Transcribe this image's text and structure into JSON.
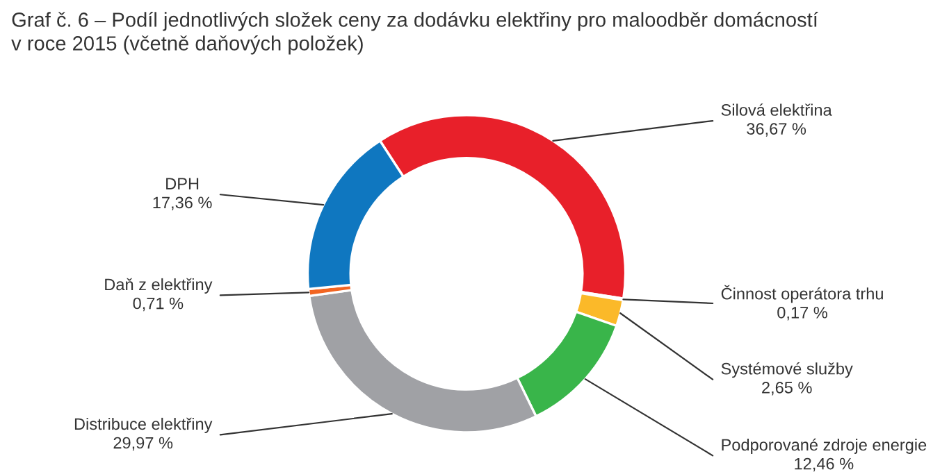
{
  "chart_data": {
    "type": "donut",
    "title": "Graf č. 6 – Podíl jednotlivých složek ceny za dodávku elektřiny pro maloodběr domácností\nv roce 2015 (včetně daňových položek)",
    "categories": [
      "Silová elektřina",
      "Činnost operátora trhu",
      "Systémové služby",
      "Podporované zdroje energie",
      "Distribuce elektřiny",
      "Daň z elektřiny",
      "DPH"
    ],
    "values": [
      36.67,
      0.17,
      2.65,
      12.46,
      29.97,
      0.71,
      17.36
    ],
    "value_labels": [
      "36,67 %",
      "0,17 %",
      "2,65 %",
      "12,46 %",
      "29,97 %",
      "0,71 %",
      "17,36 %"
    ],
    "colors": [
      "#e8202a",
      "#f58220",
      "#fbb929",
      "#39b54a",
      "#a0a1a5",
      "#f26522",
      "#0f77c0"
    ],
    "legend": false
  }
}
